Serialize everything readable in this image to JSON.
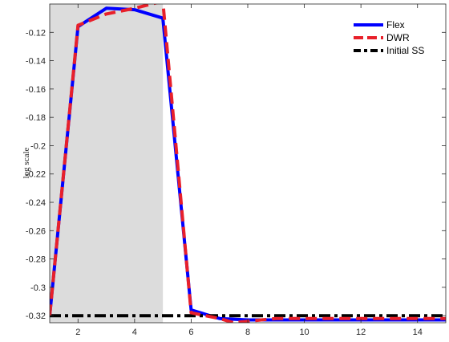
{
  "chart_data": {
    "type": "line",
    "title": "",
    "xlabel": "",
    "ylabel": "log scale",
    "xlim": [
      1,
      15
    ],
    "ylim": [
      -0.325,
      -0.1
    ],
    "x_ticks": [
      2,
      4,
      6,
      8,
      10,
      12,
      14
    ],
    "y_ticks": [
      -0.32,
      -0.3,
      -0.28,
      -0.26,
      -0.24,
      -0.22,
      -0.2,
      -0.18,
      -0.16,
      -0.14,
      -0.12
    ],
    "x_tick_labels": [
      "2",
      "4",
      "6",
      "8",
      "10",
      "12",
      "14"
    ],
    "y_tick_labels": [
      "-0.32",
      "-0.3",
      "-0.28",
      "-0.26",
      "-0.24",
      "-0.22",
      "-0.2",
      "-0.18",
      "-0.16",
      "-0.14",
      "-0.12"
    ],
    "grid": false,
    "legend_position": "top-right",
    "shaded_region": {
      "x": [
        1,
        5
      ],
      "color": "#dcdcdc"
    },
    "series": [
      {
        "name": "Flex",
        "color": "#0000ff",
        "style": "solid",
        "x": [
          1,
          2,
          3,
          4,
          5,
          6,
          7,
          8,
          9,
          10,
          11,
          12,
          13,
          14,
          15
        ],
        "y": [
          -0.32,
          -0.116,
          -0.103,
          -0.104,
          -0.11,
          -0.316,
          -0.322,
          -0.323,
          -0.323,
          -0.323,
          -0.323,
          -0.323,
          -0.323,
          -0.323,
          -0.323
        ]
      },
      {
        "name": "DWR",
        "color": "#e8202a",
        "style": "dashed",
        "x": [
          1,
          2,
          3,
          4,
          5,
          6,
          7,
          7.5,
          8,
          9,
          10,
          11,
          12,
          13,
          14,
          15
        ],
        "y": [
          -0.32,
          -0.115,
          -0.107,
          -0.103,
          -0.098,
          -0.318,
          -0.322,
          -0.325,
          -0.324,
          -0.322,
          -0.322,
          -0.322,
          -0.322,
          -0.322,
          -0.322,
          -0.322
        ]
      },
      {
        "name": "Initial SS",
        "color": "#000000",
        "style": "dashdot",
        "x": [
          1,
          15
        ],
        "y": [
          -0.32,
          -0.32
        ]
      }
    ]
  }
}
